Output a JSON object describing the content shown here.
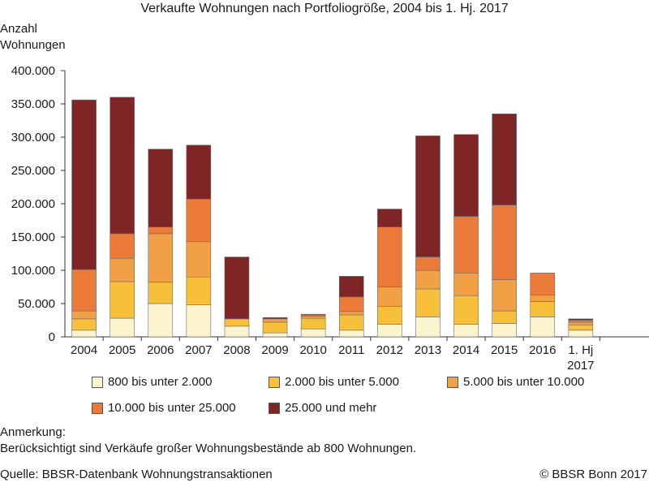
{
  "chart_data": {
    "type": "bar",
    "stacked": true,
    "title": "Verkaufte Wohnungen nach Portfoliogröße, 2004 bis 1. Hj. 2017",
    "ylabel": "Anzahl Wohnungen",
    "ylabel_lines": [
      "Anzahl",
      "Wohnungen"
    ],
    "xlabel": "",
    "ylim": [
      0,
      400000
    ],
    "yticks": [
      0,
      50000,
      100000,
      150000,
      200000,
      250000,
      300000,
      350000,
      400000
    ],
    "ytick_labels": [
      "0",
      "50.000",
      "100.000",
      "150.000",
      "200.000",
      "250.000",
      "300.000",
      "350.000",
      "400.000"
    ],
    "categories": [
      "2004",
      "2005",
      "2006",
      "2007",
      "2008",
      "2009",
      "2010",
      "2011",
      "2012",
      "2013",
      "2014",
      "2015",
      "2016",
      "1. Hj 2017"
    ],
    "category_lines": [
      [
        "2004"
      ],
      [
        "2005"
      ],
      [
        "2006"
      ],
      [
        "2007"
      ],
      [
        "2008"
      ],
      [
        "2009"
      ],
      [
        "2010"
      ],
      [
        "2011"
      ],
      [
        "2012"
      ],
      [
        "2013"
      ],
      [
        "2014"
      ],
      [
        "2015"
      ],
      [
        "2016"
      ],
      [
        "1. Hj",
        "2017"
      ]
    ],
    "series": [
      {
        "name": "800 bis unter 2.000",
        "color": "#fbf4cf",
        "values": [
          10000,
          28000,
          50000,
          48000,
          16000,
          6000,
          12000,
          10000,
          19000,
          30000,
          19000,
          20000,
          30000,
          10000
        ]
      },
      {
        "name": "2.000 bis unter 5.000",
        "color": "#f8c03a",
        "values": [
          17000,
          55000,
          32000,
          42000,
          11000,
          16000,
          16000,
          23000,
          27000,
          42000,
          43000,
          19000,
          23000,
          8000
        ]
      },
      {
        "name": "5.000 bis unter 10.000",
        "color": "#f2a045",
        "values": [
          12000,
          35000,
          73000,
          53000,
          0,
          5000,
          3000,
          5000,
          29000,
          28000,
          34000,
          47000,
          10000,
          4000
        ]
      },
      {
        "name": "10.000 bis unter 25.000",
        "color": "#ec7a38",
        "values": [
          62000,
          37000,
          10000,
          64000,
          0,
          0,
          2000,
          22000,
          90000,
          20000,
          85000,
          112000,
          33000,
          3000
        ]
      },
      {
        "name": "25.000 und mehr",
        "color": "#7f2525",
        "values": [
          255000,
          205000,
          117000,
          81000,
          93000,
          2000,
          1000,
          31000,
          27000,
          182000,
          123000,
          137000,
          0,
          2000
        ]
      }
    ]
  },
  "notes": {
    "heading": "Anmerkung:",
    "text": "Berücksichtigt sind Verkäufe großer Wohnungsbestände ab 800 Wohnungen.",
    "source": "Quelle: BBSR-Datenbank Wohnungstransaktionen",
    "copyright": "© BBSR Bonn 2017"
  }
}
